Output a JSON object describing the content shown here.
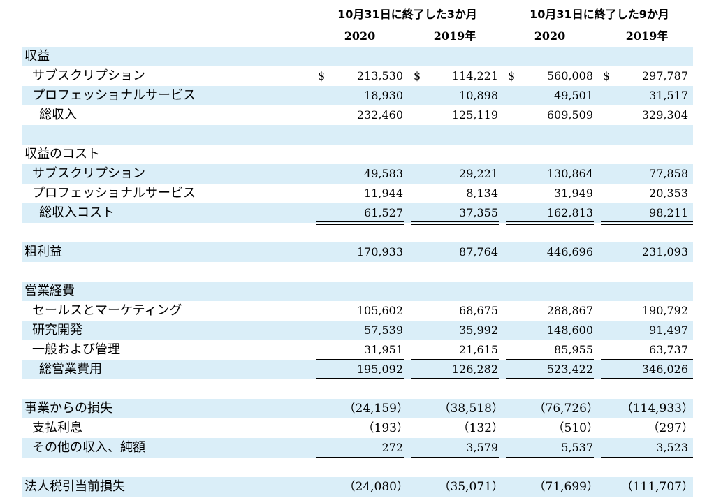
{
  "header": {
    "group1": "10月31日に終了した3か月",
    "group2": "10月31日に終了した9か月",
    "years": [
      "2020",
      "2019年",
      "2020",
      "2019年"
    ]
  },
  "currency_symbol": "$",
  "rows": [
    {
      "label": "収益",
      "indent": 0,
      "values": [
        "",
        "",
        "",
        ""
      ]
    },
    {
      "label": "サブスクリプション",
      "indent": 1,
      "values": [
        "213,530",
        "114,221",
        "560,008",
        "297,787"
      ],
      "dollar": true
    },
    {
      "label": "プロフェッショナルサービス",
      "indent": 1,
      "values": [
        "18,930",
        "10,898",
        "49,501",
        "31,517"
      ]
    },
    {
      "label": "総収入",
      "indent": 2,
      "values": [
        "232,460",
        "125,119",
        "609,509",
        "329,304"
      ]
    },
    {
      "label": "",
      "indent": 0,
      "values": [
        "",
        "",
        "",
        ""
      ]
    },
    {
      "label": "収益のコスト",
      "indent": 0,
      "values": [
        "",
        "",
        "",
        ""
      ]
    },
    {
      "label": "サブスクリプション",
      "indent": 1,
      "values": [
        "49,583",
        "29,221",
        "130,864",
        "77,858"
      ]
    },
    {
      "label": "プロフェッショナルサービス",
      "indent": 1,
      "values": [
        "11,944",
        "8,134",
        "31,949",
        "20,353"
      ]
    },
    {
      "label": "総収入コスト",
      "indent": 2,
      "values": [
        "61,527",
        "37,355",
        "162,813",
        "98,211"
      ]
    },
    {
      "label": "",
      "indent": 0,
      "values": [
        "",
        "",
        "",
        ""
      ]
    },
    {
      "label": "粗利益",
      "indent": 0,
      "values": [
        "170,933",
        "87,764",
        "446,696",
        "231,093"
      ]
    },
    {
      "label": "",
      "indent": 0,
      "values": [
        "",
        "",
        "",
        ""
      ]
    },
    {
      "label": "営業経費",
      "indent": 0,
      "values": [
        "",
        "",
        "",
        ""
      ]
    },
    {
      "label": "セールスとマーケティング",
      "indent": 1,
      "values": [
        "105,602",
        "68,675",
        "288,867",
        "190,792"
      ]
    },
    {
      "label": "研究開発",
      "indent": 1,
      "values": [
        "57,539",
        "35,992",
        "148,600",
        "91,497"
      ]
    },
    {
      "label": "一般および管理",
      "indent": 1,
      "values": [
        "31,951",
        "21,615",
        "85,955",
        "63,737"
      ]
    },
    {
      "label": "総営業費用",
      "indent": 2,
      "values": [
        "195,092",
        "126,282",
        "523,422",
        "346,026"
      ]
    },
    {
      "label": "",
      "indent": 0,
      "values": [
        "",
        "",
        "",
        ""
      ]
    },
    {
      "label": "事業からの損失",
      "indent": 0,
      "values": [
        "（24,159）",
        "（38,518）",
        "（76,726）",
        "（114,933）"
      ]
    },
    {
      "label": "支払利息",
      "indent": 1,
      "values": [
        "（193）",
        "（132）",
        "（510）",
        "（297）"
      ]
    },
    {
      "label": "その他の収入、純額",
      "indent": 1,
      "values": [
        "272",
        "3,579",
        "5,537",
        "3,523"
      ]
    },
    {
      "label": "",
      "indent": 0,
      "values": [
        "",
        "",
        "",
        ""
      ]
    },
    {
      "label": "法人税引当前損失",
      "indent": 0,
      "values": [
        "（24,080）",
        "（35,071）",
        "（71,699）",
        "（111,707）"
      ]
    }
  ]
}
